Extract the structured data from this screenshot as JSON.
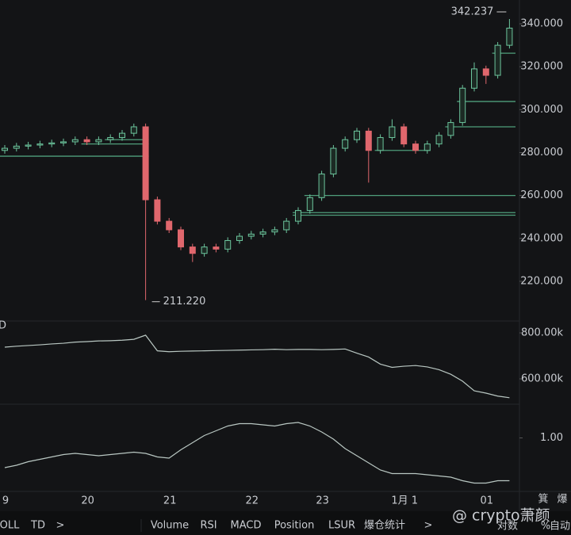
{
  "chart_data": [
    {
      "type": "candlestick",
      "categories": [
        "9",
        null,
        null,
        null,
        null,
        null,
        null,
        "20",
        null,
        null,
        null,
        null,
        null,
        null,
        "21",
        null,
        null,
        null,
        null,
        null,
        null,
        "22",
        null,
        null,
        null,
        null,
        null,
        "23",
        null,
        null,
        null,
        null,
        null,
        null,
        "1月 1",
        null,
        null,
        null,
        null,
        null,
        null,
        "01",
        null,
        null
      ],
      "open": [
        281,
        282,
        283,
        283.5,
        284,
        284.5,
        285,
        286,
        285,
        286,
        287,
        289,
        292,
        258,
        248,
        244,
        236,
        233,
        236,
        235,
        239,
        241,
        242,
        243,
        244,
        248,
        253,
        259,
        270,
        282,
        286,
        290,
        281,
        287,
        292,
        284,
        281,
        284,
        288,
        294,
        310,
        319,
        316,
        330
      ],
      "high": [
        283.5,
        284.5,
        285,
        285.5,
        286,
        286.5,
        287.5,
        287.5,
        287.5,
        288.5,
        290.5,
        293.5,
        293.5,
        259.5,
        249.5,
        245.5,
        237.5,
        237.5,
        237.5,
        240.5,
        242.5,
        243.5,
        244.5,
        245.5,
        249.5,
        254.5,
        260.5,
        271.5,
        283.5,
        287.5,
        291.5,
        291.5,
        288.5,
        295.5,
        293.5,
        285.5,
        285.5,
        289.5,
        295.5,
        311.5,
        322,
        320.5,
        331.5,
        342.237
      ],
      "low": [
        279.5,
        280.5,
        281.5,
        282,
        282.5,
        283,
        283.5,
        283.5,
        283.5,
        284.5,
        285.5,
        287.5,
        211.22,
        246.5,
        242.5,
        234.5,
        229,
        231.5,
        233.5,
        233.5,
        237.5,
        239.5,
        240.5,
        241.5,
        242.5,
        246.5,
        251.5,
        257.5,
        268.5,
        280.5,
        284.5,
        266,
        279.5,
        285.5,
        282.5,
        279.5,
        279.5,
        282.5,
        286.5,
        292.5,
        308.5,
        312,
        314.5,
        328.5
      ],
      "close": [
        282,
        283,
        283.5,
        284,
        284.5,
        285,
        286,
        285,
        286,
        287,
        289,
        292,
        258,
        248,
        244,
        236,
        233,
        236,
        235,
        239,
        241,
        242,
        243,
        244,
        248,
        253,
        259,
        270,
        282,
        286,
        290,
        281,
        287,
        292,
        284,
        281,
        284,
        288,
        294,
        310,
        319,
        316,
        330,
        338
      ],
      "up_color": "#6cc59d",
      "down_color": "#e0676d",
      "level_color": "#4f9e7b",
      "levels": [
        {
          "price": 278.3,
          "start": 0,
          "end": 12
        },
        {
          "price": 284,
          "start": 7,
          "end": 12
        },
        {
          "price": 286,
          "start": 9,
          "end": 12
        },
        {
          "price": 281,
          "start": 32,
          "end": 36
        },
        {
          "price": 260,
          "start": 26
        },
        {
          "price": 252,
          "start": 25
        },
        {
          "price": 250.8,
          "start": 25
        },
        {
          "price": 292,
          "start": 38
        },
        {
          "price": 303.8,
          "start": 39
        },
        {
          "price": 326.3,
          "start": 42
        }
      ],
      "high_label": "342.237",
      "low_label": "211.220",
      "ylim": [
        201.5,
        351.1
      ],
      "yticks": [
        {
          "value": 220,
          "label": "220.000"
        },
        {
          "value": 240,
          "label": "240.000"
        },
        {
          "value": 260,
          "label": "260.000"
        },
        {
          "value": 280,
          "label": "280.000"
        },
        {
          "value": 300,
          "label": "300.000"
        },
        {
          "value": 320,
          "label": "320.000"
        },
        {
          "value": 340,
          "label": "340.000"
        }
      ]
    },
    {
      "type": "line",
      "label": "D",
      "color": "#b9c7c2",
      "values": [
        738000,
        742000,
        745000,
        748000,
        752000,
        755000,
        760000,
        762000,
        765000,
        766000,
        768000,
        772000,
        790000,
        722000,
        718000,
        720000,
        721000,
        722000,
        723000,
        724000,
        725000,
        726000,
        727000,
        729000,
        727000,
        728000,
        728000,
        727000,
        728000,
        730000,
        712000,
        695000,
        664000,
        650000,
        655000,
        658000,
        652000,
        640000,
        620000,
        590000,
        548000,
        538000,
        525000,
        518000
      ],
      "ylim": [
        489700,
        851700
      ],
      "yticks": [
        {
          "value": 600000,
          "label": "600.00k"
        },
        {
          "value": 800000,
          "label": "800.00k"
        }
      ]
    },
    {
      "type": "line",
      "color": "#b9c7c2",
      "values": [
        0.75,
        0.77,
        0.8,
        0.82,
        0.84,
        0.86,
        0.87,
        0.86,
        0.85,
        0.86,
        0.87,
        0.88,
        0.87,
        0.84,
        0.83,
        0.9,
        0.96,
        1.02,
        1.06,
        1.1,
        1.12,
        1.12,
        1.11,
        1.1,
        1.12,
        1.13,
        1.1,
        1.05,
        0.99,
        0.91,
        0.85,
        0.79,
        0.73,
        0.7,
        0.7,
        0.7,
        0.69,
        0.68,
        0.67,
        0.64,
        0.62,
        0.62,
        0.64,
        0.64
      ],
      "ylim": [
        0.55,
        1.25
      ],
      "yticks": [
        {
          "value": 1,
          "label": "1.00"
        }
      ]
    }
  ],
  "side_tabs": [
    "箕",
    "爆"
  ],
  "toolbar": {
    "left": [
      "OLL",
      "TD",
      ">"
    ],
    "indicators": [
      "Volume",
      "RSI",
      "MACD",
      "Position",
      "LSUR",
      "爆仓统计",
      ">"
    ],
    "right": [
      "对数",
      "%",
      "自动"
    ]
  },
  "watermark": "@ crypto萧颜"
}
